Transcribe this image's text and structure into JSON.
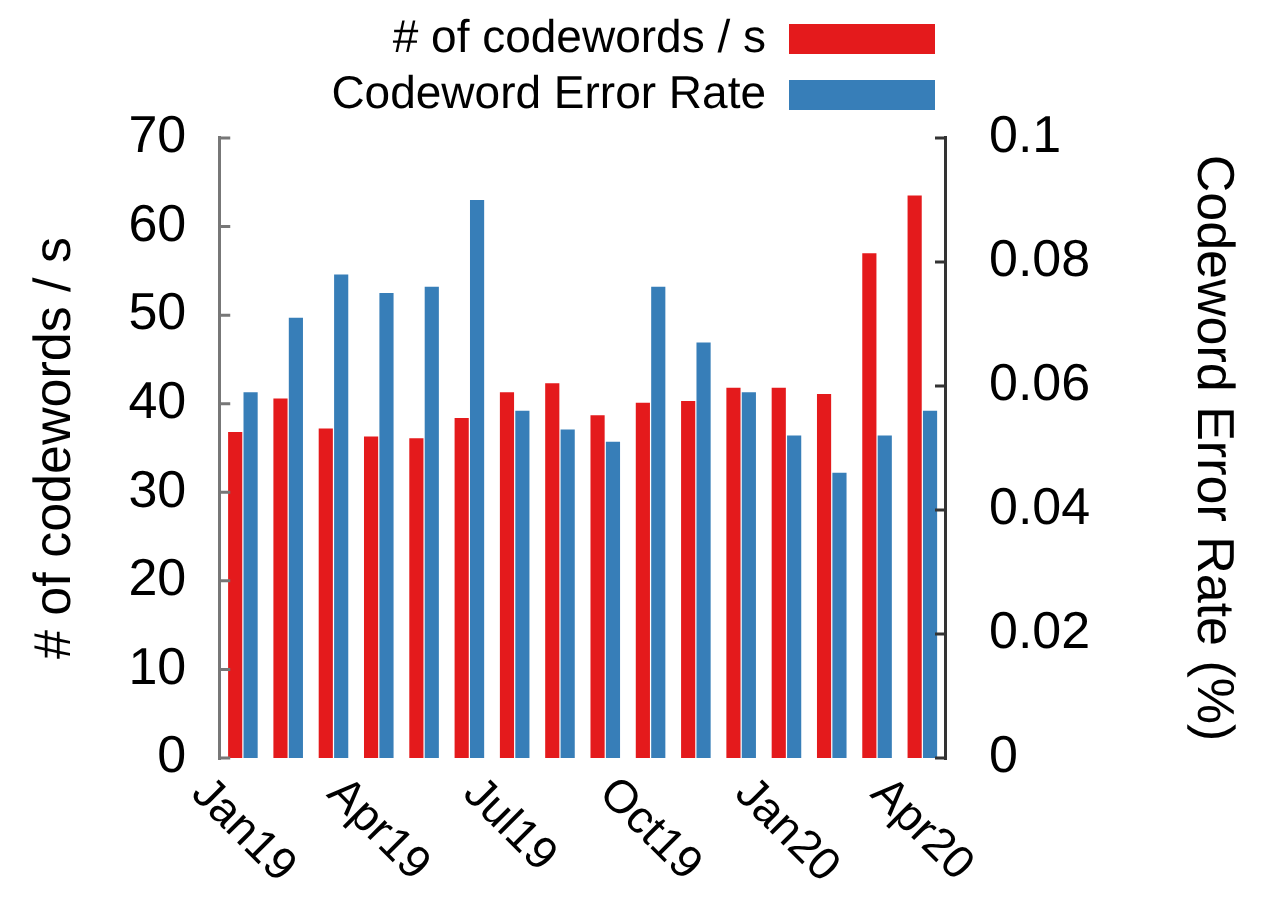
{
  "chart_data": {
    "type": "bar",
    "ylabel": "# of codewords / s",
    "y2label": "Codeword Error Rate (%)",
    "categories": [
      "Jan19",
      null,
      null,
      "Apr19",
      null,
      null,
      "Jul19",
      null,
      null,
      "Oct19",
      null,
      null,
      "Jan20",
      null,
      null,
      "Apr20"
    ],
    "series": [
      {
        "name": "# of codewords / s",
        "color": "#e41a1c",
        "values": [
          36.8,
          40.6,
          37.2,
          36.3,
          36.1,
          38.4,
          41.3,
          42.3,
          38.7,
          40.1,
          40.3,
          41.8,
          41.8,
          41.1,
          57.0,
          63.5
        ]
      },
      {
        "name": "Codeword Error Rate",
        "color": "#377eb8",
        "axis": "y2",
        "values": [
          0.059,
          0.071,
          0.078,
          0.075,
          0.076,
          0.09,
          0.056,
          0.053,
          0.051,
          0.076,
          0.067,
          0.059,
          0.052,
          0.046,
          0.052,
          0.056
        ]
      }
    ],
    "ylim": [
      0,
      70
    ],
    "yticks": [
      0,
      10,
      20,
      30,
      40,
      50,
      60,
      70
    ],
    "y2lim": [
      0,
      0.1
    ],
    "y2ticks": [
      0,
      0.02,
      0.04,
      0.06,
      0.08,
      0.1
    ],
    "grid": false,
    "legend": "top right"
  }
}
